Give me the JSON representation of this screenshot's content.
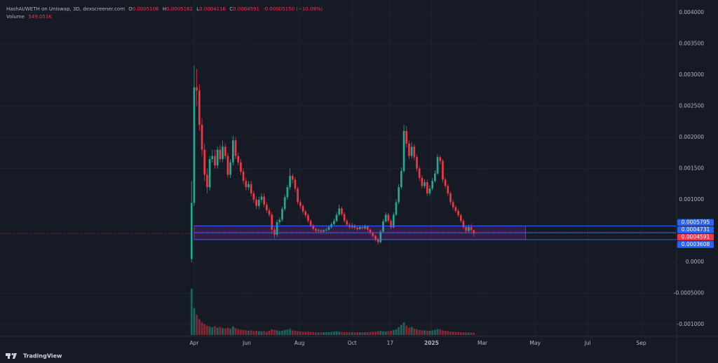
{
  "chart_data": {
    "type": "candlestick",
    "header": {
      "symbol": "HashAI/WETH on Uniswap, 3D, dexscreener.com",
      "ohlc": [
        {
          "label": "O",
          "value": "0.0005106"
        },
        {
          "label": "H",
          "value": "0.0005162"
        },
        {
          "label": "L",
          "value": "0.0004116"
        },
        {
          "label": "C",
          "value": "0.0004591"
        }
      ],
      "change": "-0.00005150 (−10.09%)",
      "volume_label": "Volume",
      "volume_value": "549.051K"
    },
    "up_color": "#22ab94",
    "down_color": "#f23645",
    "grid": true,
    "xlim": [
      -225,
      559
    ],
    "xticks": [
      {
        "value": 0,
        "label": "Apr"
      },
      {
        "value": 61,
        "label": "Jun"
      },
      {
        "value": 122,
        "label": "Aug"
      },
      {
        "value": 183,
        "label": "Oct"
      },
      {
        "value": 227,
        "label": "17"
      },
      {
        "value": 275,
        "label": "2025"
      },
      {
        "value": 334,
        "label": "Mar"
      },
      {
        "value": 395,
        "label": "May"
      },
      {
        "value": 456,
        "label": "Jul"
      },
      {
        "value": 518,
        "label": "Sep"
      }
    ],
    "ylim": [
      -0.00119,
      0.0042
    ],
    "yticks": [
      {
        "value": 0.004,
        "label": "0.004000"
      },
      {
        "value": 0.0035,
        "label": "0.003500"
      },
      {
        "value": 0.003,
        "label": "0.003000"
      },
      {
        "value": 0.0025,
        "label": "0.002500"
      },
      {
        "value": 0.002,
        "label": "0.002000"
      },
      {
        "value": 0.0015,
        "label": "0.001500"
      },
      {
        "value": 0.001,
        "label": "0.001000"
      },
      {
        "value": 0,
        "label": "0.0000"
      },
      {
        "value": -0.0005,
        "label": "-0.0005000"
      },
      {
        "value": -0.001,
        "label": "-0.001000"
      }
    ],
    "x": [
      -3,
      0,
      3,
      6,
      9,
      12,
      15,
      18,
      21,
      24,
      27,
      30,
      33,
      36,
      39,
      42,
      45,
      48,
      51,
      54,
      57,
      60,
      63,
      66,
      69,
      72,
      75,
      78,
      81,
      84,
      87,
      90,
      93,
      96,
      99,
      102,
      105,
      108,
      111,
      114,
      117,
      120,
      123,
      126,
      129,
      132,
      135,
      138,
      141,
      144,
      147,
      150,
      153,
      156,
      159,
      162,
      165,
      168,
      171,
      174,
      177,
      180,
      183,
      186,
      189,
      192,
      195,
      198,
      201,
      204,
      207,
      210,
      213,
      216,
      219,
      222,
      225,
      228,
      231,
      234,
      237,
      240,
      243,
      246,
      249,
      252,
      255,
      258,
      261,
      264,
      267,
      270,
      273,
      276,
      279,
      282,
      285,
      288,
      291,
      294,
      297,
      300,
      303,
      306,
      309,
      312,
      315,
      318,
      321,
      324
    ],
    "open": [
      5e-05,
      0.00095,
      0.0028,
      0.00275,
      0.0022,
      0.0018,
      0.0014,
      0.0012,
      0.00165,
      0.0017,
      0.00155,
      0.0018,
      0.00165,
      0.00185,
      0.0017,
      0.0014,
      0.0016,
      0.00195,
      0.0017,
      0.0016,
      0.00145,
      0.0013,
      0.0012,
      0.00125,
      0.0011,
      0.001,
      0.0009,
      0.001,
      0.00105,
      0.00092,
      0.00083,
      0.00076,
      0.00052,
      0.00044,
      0.00064,
      0.00068,
      0.00085,
      0.00104,
      0.0012,
      0.00138,
      0.00132,
      0.00118,
      0.00096,
      0.0009,
      0.00081,
      0.00075,
      0.00066,
      0.00059,
      0.00053,
      0.0005,
      0.00051,
      0.00049,
      0.00051,
      0.00052,
      0.00056,
      0.00061,
      0.00066,
      0.00076,
      0.00086,
      0.00077,
      0.00066,
      0.0006,
      0.00056,
      0.00059,
      0.00055,
      0.00053,
      0.00056,
      0.00054,
      0.00057,
      0.00052,
      0.00047,
      0.00042,
      0.00037,
      0.00032,
      0.00049,
      0.00065,
      0.00076,
      0.00066,
      0.00056,
      0.00076,
      0.00096,
      0.0012,
      0.00146,
      0.0021,
      0.0019,
      0.0017,
      0.00185,
      0.00168,
      0.0015,
      0.00135,
      0.00122,
      0.00128,
      0.0011,
      0.00118,
      0.0013,
      0.00142,
      0.00168,
      0.00162,
      0.00132,
      0.00122,
      0.0011,
      0.00096,
      0.00088,
      0.00082,
      0.00075,
      0.00066,
      0.00056,
      0.0005,
      0.00056,
      0.0005106
    ],
    "high": [
      0.0013,
      0.00315,
      0.0031,
      0.00285,
      0.0023,
      0.0019,
      0.0015,
      0.0017,
      0.0018,
      0.0018,
      0.00185,
      0.00188,
      0.00195,
      0.0019,
      0.00175,
      0.00165,
      0.00202,
      0.002,
      0.00175,
      0.00165,
      0.0015,
      0.00135,
      0.0013,
      0.0013,
      0.00115,
      0.00105,
      0.00105,
      0.0011,
      0.0011,
      0.00096,
      0.00087,
      0.0008,
      0.00056,
      0.00068,
      0.00072,
      0.00089,
      0.00108,
      0.00124,
      0.0015,
      0.00142,
      0.00136,
      0.00121,
      0.001,
      0.00093,
      0.00084,
      0.00078,
      0.00069,
      0.00061,
      0.00055,
      0.00054,
      0.00053,
      0.00053,
      0.00055,
      0.00059,
      0.00064,
      0.0007,
      0.0008,
      0.00092,
      0.00089,
      0.0008,
      0.00069,
      0.00063,
      0.00062,
      0.00061,
      0.00057,
      0.00059,
      0.00058,
      0.0006,
      0.00059,
      0.00054,
      0.00049,
      0.00044,
      0.00039,
      0.00052,
      0.00069,
      0.0008,
      0.00079,
      0.00069,
      0.0008,
      0.001,
      0.00125,
      0.00152,
      0.0022,
      0.00218,
      0.00195,
      0.00192,
      0.00189,
      0.00172,
      0.00154,
      0.00139,
      0.00133,
      0.00132,
      0.00123,
      0.00135,
      0.00147,
      0.00173,
      0.00171,
      0.00165,
      0.00135,
      0.00125,
      0.00113,
      0.00099,
      0.00091,
      0.00085,
      0.00078,
      0.00069,
      0.00059,
      0.0006,
      0.00062,
      0.0005162
    ],
    "low": [
      0,
      0.0009,
      0.0025,
      0.0021,
      0.0017,
      0.0013,
      0.0011,
      0.00115,
      0.0016,
      0.0015,
      0.0015,
      0.0016,
      0.0016,
      0.00165,
      0.00135,
      0.00135,
      0.00155,
      0.00165,
      0.00155,
      0.0014,
      0.00125,
      0.00115,
      0.00115,
      0.00105,
      0.00095,
      0.00085,
      0.00085,
      0.00095,
      0.00088,
      0.00079,
      0.00072,
      0.00045,
      0.00038,
      0.00041,
      0.0006,
      0.00065,
      0.00082,
      0.001,
      0.00116,
      0.00126,
      0.00113,
      0.00092,
      0.00086,
      0.00077,
      0.00071,
      0.00063,
      0.00056,
      0.0005,
      0.00047,
      0.00048,
      0.00046,
      0.00047,
      0.00049,
      0.0005,
      0.00054,
      0.00059,
      0.00064,
      0.00074,
      0.00074,
      0.00063,
      0.00057,
      0.00053,
      0.00054,
      0.00052,
      0.0005,
      0.00051,
      0.00051,
      0.00052,
      0.00049,
      0.00044,
      0.00039,
      0.00033,
      0.00028,
      0.0003,
      0.00047,
      0.00063,
      0.00063,
      0.00053,
      0.00054,
      0.00074,
      0.00093,
      0.00117,
      0.00143,
      0.00184,
      0.00165,
      0.00166,
      0.00163,
      0.00145,
      0.0013,
      0.00118,
      0.00118,
      0.00106,
      0.00107,
      0.00115,
      0.00127,
      0.0014,
      0.00157,
      0.00128,
      0.00118,
      0.00106,
      0.00092,
      0.00084,
      0.00079,
      0.00072,
      0.00063,
      0.00053,
      0.00046,
      0.00048,
      0.00049,
      0.0004116
    ],
    "close": [
      0.00095,
      0.0028,
      0.00275,
      0.0022,
      0.0018,
      0.0014,
      0.0012,
      0.00165,
      0.0017,
      0.00155,
      0.0018,
      0.00165,
      0.00185,
      0.0017,
      0.0014,
      0.0016,
      0.00195,
      0.0017,
      0.0016,
      0.00145,
      0.0013,
      0.0012,
      0.00125,
      0.0011,
      0.001,
      0.0009,
      0.001,
      0.00105,
      0.00092,
      0.00083,
      0.00076,
      0.00052,
      0.00044,
      0.00064,
      0.00068,
      0.00085,
      0.00104,
      0.0012,
      0.00138,
      0.00132,
      0.00118,
      0.00096,
      0.0009,
      0.00081,
      0.00075,
      0.00066,
      0.00059,
      0.00053,
      0.0005,
      0.00051,
      0.00049,
      0.00051,
      0.00052,
      0.00056,
      0.00061,
      0.00066,
      0.00076,
      0.00086,
      0.00077,
      0.00066,
      0.0006,
      0.00056,
      0.00059,
      0.00055,
      0.00053,
      0.00056,
      0.00054,
      0.00057,
      0.00052,
      0.00047,
      0.00042,
      0.00037,
      0.00032,
      0.00049,
      0.00065,
      0.00076,
      0.00066,
      0.00056,
      0.00076,
      0.00096,
      0.0012,
      0.00146,
      0.0021,
      0.0019,
      0.0017,
      0.00185,
      0.00168,
      0.0015,
      0.00135,
      0.00122,
      0.00128,
      0.0011,
      0.00118,
      0.0013,
      0.00142,
      0.00168,
      0.00162,
      0.00132,
      0.00122,
      0.0011,
      0.00096,
      0.00088,
      0.00082,
      0.00075,
      0.00066,
      0.00056,
      0.0005,
      0.00056,
      0.0005106,
      0.0004591
    ],
    "volume": [
      12000000,
      7000000,
      5200000,
      4100000,
      3300000,
      2800000,
      2400000,
      2200000,
      2000000,
      2300000,
      1900000,
      2100000,
      1800000,
      1700000,
      1900000,
      1600000,
      2200000,
      1800000,
      1500000,
      1400000,
      1300000,
      1200000,
      1100000,
      1200000,
      1000000,
      1100000,
      1000000,
      950000,
      1000000,
      900000,
      1100000,
      1500000,
      1300000,
      1200000,
      1000000,
      1100000,
      1300000,
      1400000,
      1600000,
      1200000,
      1100000,
      1000000,
      900000,
      850000,
      800000,
      900000,
      800000,
      750000,
      700000,
      650000,
      700000,
      680000,
      720000,
      750000,
      800000,
      900000,
      1000000,
      850000,
      800000,
      750000,
      700000,
      720000,
      680000,
      650000,
      700000,
      660000,
      680000,
      700000,
      750000,
      800000,
      850000,
      900000,
      1000000,
      1100000,
      950000,
      900000,
      1000000,
      1100000,
      1300000,
      1500000,
      2000000,
      2600000,
      3300000,
      2400000,
      1900000,
      2100000,
      1700000,
      1500000,
      1300000,
      1200000,
      1200000,
      1100000,
      1100000,
      1200000,
      1300000,
      1600000,
      1400000,
      1200000,
      1100000,
      1000000,
      900000,
      850000,
      800000,
      750000,
      700000,
      650000,
      700000,
      600000,
      620000,
      549051
    ],
    "rectangle": {
      "x": [
        0,
        384
      ],
      "y": [
        0.0003608,
        0.0005795
      ],
      "color": "#9c27b0"
    },
    "price_lines": [
      {
        "value": 0.0005795,
        "color": "#2962ff"
      },
      {
        "value": 0.0004731,
        "color": "#2962ff"
      },
      {
        "value": 0.0003608,
        "color": "#2962ff"
      }
    ],
    "last_price": {
      "value": 0.0004591,
      "color": "#f23645"
    }
  },
  "footer": {
    "brand": "TradingView"
  }
}
